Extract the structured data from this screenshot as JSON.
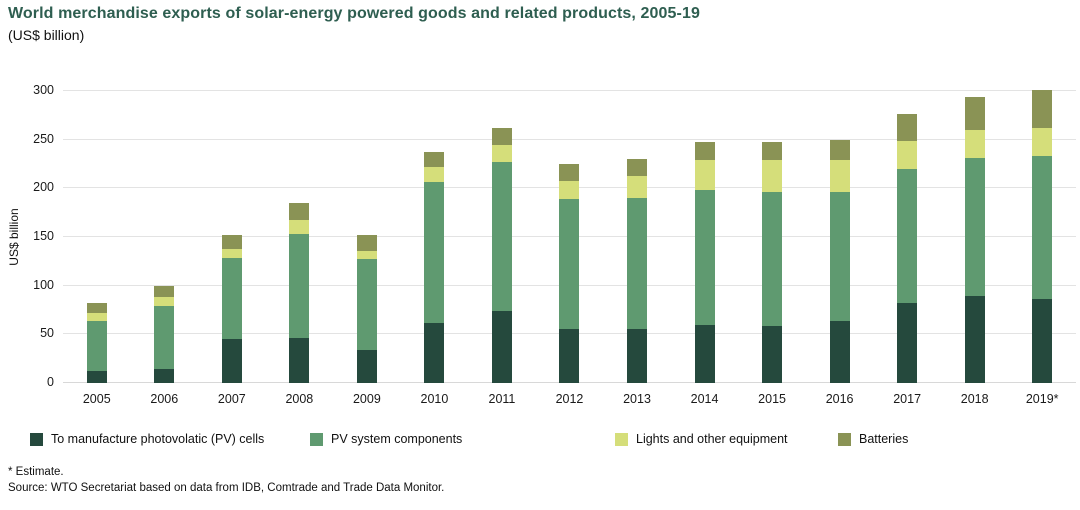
{
  "header": {
    "title": "World merchandise exports of solar-energy powered goods and related products, 2005-19",
    "subtitle": "(US$ billion)"
  },
  "chart_data": {
    "type": "bar",
    "stacked": true,
    "title": "World merchandise exports of solar-energy powered goods and related products, 2005-19",
    "subtitle": "(US$ billion)",
    "xlabel": "",
    "ylabel": "US$ billion",
    "ylim": [
      0,
      300
    ],
    "ytick_step": 50,
    "grid": true,
    "legend_position": "bottom",
    "categories": [
      "2005",
      "2006",
      "2007",
      "2008",
      "2009",
      "2010",
      "2011",
      "2012",
      "2013",
      "2014",
      "2015",
      "2016",
      "2017",
      "2018",
      "2019*"
    ],
    "series": [
      {
        "name": "To manufacture photovolatic (PV) cells",
        "color": "#25493d",
        "values": [
          12,
          14,
          45,
          46,
          34,
          62,
          74,
          56,
          55,
          60,
          59,
          64,
          82,
          89,
          86
        ]
      },
      {
        "name": "PV system components",
        "color": "#5f9a70",
        "values": [
          52,
          65,
          83,
          107,
          93,
          145,
          153,
          133,
          135,
          138,
          137,
          132,
          138,
          142,
          147
        ]
      },
      {
        "name": "Lights and other equipment",
        "color": "#d5de7a",
        "values": [
          8,
          9,
          10,
          15,
          9,
          15,
          18,
          19,
          23,
          31,
          33,
          33,
          29,
          29,
          29
        ]
      },
      {
        "name": "Batteries",
        "color": "#8a9355",
        "values": [
          10,
          12,
          14,
          17,
          16,
          15,
          17,
          17,
          17,
          19,
          19,
          21,
          27,
          34,
          39
        ]
      }
    ]
  },
  "footnotes": {
    "estimate": "* Estimate.",
    "source": "Source: WTO Secretariat based on data from IDB, Comtrade and Trade Data Monitor."
  },
  "colors": {
    "title_text": "#2e5e50",
    "axis_text": "#1a1a1a",
    "gridline": "#e3e3e3"
  }
}
